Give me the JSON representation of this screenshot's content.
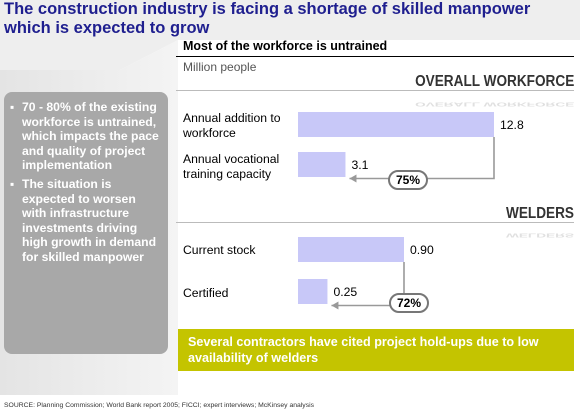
{
  "title": "The construction industry is facing a shortage of skilled manpower which is expected to grow",
  "subtitle": "Most of the workforce is untrained",
  "unit": "Million people",
  "bullets": [
    "70 - 80% of the existing workforce is untrained, which impacts the pace and quality of project implementation",
    "The situation is expected to worsen with infrastructure investments driving high growth in demand for skilled manpower"
  ],
  "callout": "Several contractors have cited project hold-ups due to low availability of welders",
  "source": "SOURCE: Planning Commission; World Bank report 2005; FICCI; expert interviews; McKinsey analysis",
  "colors": {
    "bar": "#c8c8f8",
    "title": "#1f1f8f",
    "callout": "#c4c400",
    "panel": "#a8a8a8"
  },
  "chart_data": [
    {
      "type": "bar",
      "orientation": "horizontal",
      "section": "OVERALL WORKFORCE",
      "categories": [
        "Annual addition to workforce",
        "Annual vocational training capacity"
      ],
      "values": [
        12.8,
        3.1
      ],
      "value_labels": [
        "12.8",
        "3.1"
      ],
      "ratio_label": "75%"
    },
    {
      "type": "bar",
      "orientation": "horizontal",
      "section": "WELDERS",
      "categories": [
        "Current stock",
        "Certified"
      ],
      "values": [
        0.9,
        0.25
      ],
      "value_labels": [
        "0.90",
        "0.25"
      ],
      "ratio_label": "72%"
    }
  ]
}
